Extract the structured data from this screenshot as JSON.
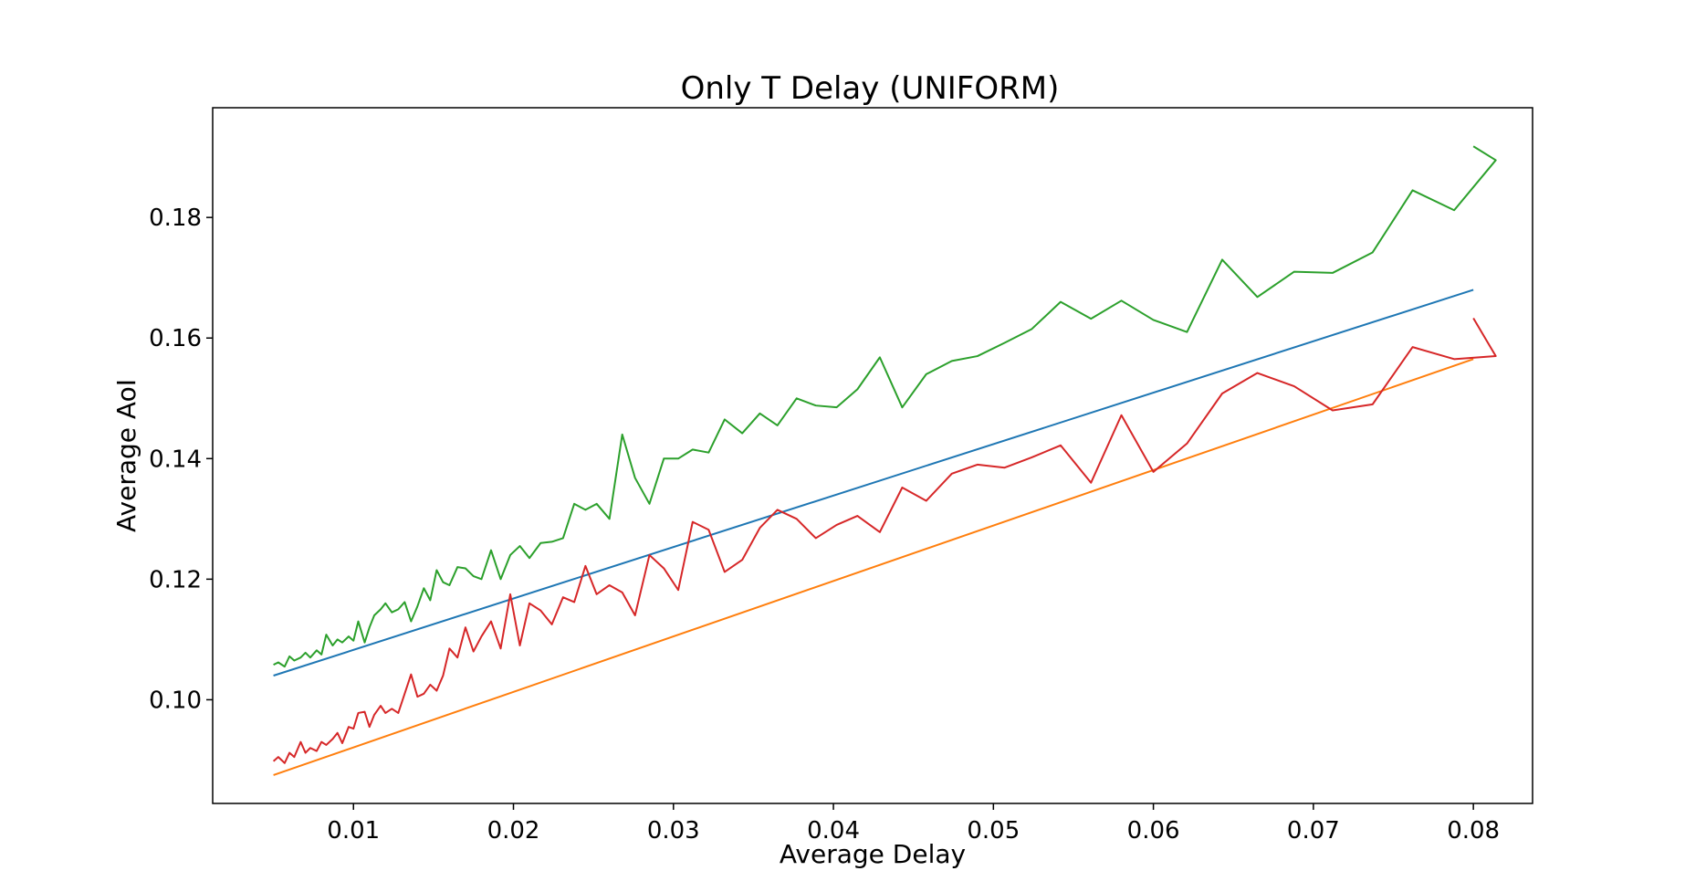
{
  "chart_data": {
    "type": "line",
    "title": "Only T Delay (UNIFORM)",
    "xlabel": "Average Delay",
    "ylabel": "Average AoI",
    "xlim": [
      0.0012,
      0.0837
    ],
    "ylim": [
      0.0828,
      0.1982
    ],
    "xticks": [
      0.01,
      0.02,
      0.03,
      0.04,
      0.05,
      0.06,
      0.07,
      0.08
    ],
    "xtick_labels": [
      "0.01",
      "0.02",
      "0.03",
      "0.04",
      "0.05",
      "0.06",
      "0.07",
      "0.08"
    ],
    "yticks": [
      0.1,
      0.12,
      0.14,
      0.16,
      0.18
    ],
    "ytick_labels": [
      "0.10",
      "0.12",
      "0.14",
      "0.16",
      "0.18"
    ],
    "grid": false,
    "legend": "none",
    "series": [
      {
        "color": "#1f77b4",
        "x": [
          0.005,
          0.08
        ],
        "y": [
          0.104,
          0.168
        ]
      },
      {
        "color": "#ff7f0e",
        "x": [
          0.005,
          0.08
        ],
        "y": [
          0.0875,
          0.1565
        ]
      },
      {
        "color": "#2ca02c",
        "x": [
          0.005,
          0.0053,
          0.0057,
          0.006,
          0.0063,
          0.0067,
          0.007,
          0.0073,
          0.0077,
          0.008,
          0.0083,
          0.0087,
          0.009,
          0.0093,
          0.0097,
          0.01,
          0.0103,
          0.0107,
          0.011,
          0.0113,
          0.0117,
          0.012,
          0.0124,
          0.0128,
          0.0132,
          0.0136,
          0.014,
          0.0144,
          0.0148,
          0.0152,
          0.0156,
          0.016,
          0.0165,
          0.017,
          0.0175,
          0.018,
          0.0186,
          0.0192,
          0.0198,
          0.0204,
          0.021,
          0.0217,
          0.0224,
          0.0231,
          0.0238,
          0.0245,
          0.0252,
          0.026,
          0.0268,
          0.0276,
          0.0285,
          0.0294,
          0.0303,
          0.0312,
          0.0322,
          0.0332,
          0.0343,
          0.0354,
          0.0365,
          0.0377,
          0.0389,
          0.0402,
          0.0415,
          0.0429,
          0.0443,
          0.0458,
          0.0474,
          0.049,
          0.0507,
          0.0524,
          0.0542,
          0.0561,
          0.058,
          0.06,
          0.0621,
          0.0643,
          0.0665,
          0.0688,
          0.0712,
          0.0737,
          0.0762,
          0.0788,
          0.0814,
          0.08
        ],
        "y": [
          0.1058,
          0.1062,
          0.1055,
          0.1072,
          0.1065,
          0.107,
          0.1078,
          0.107,
          0.1082,
          0.1075,
          0.1108,
          0.109,
          0.11,
          0.1095,
          0.1105,
          0.1098,
          0.113,
          0.1095,
          0.112,
          0.114,
          0.115,
          0.116,
          0.1145,
          0.115,
          0.1162,
          0.113,
          0.1155,
          0.1185,
          0.1165,
          0.1215,
          0.1195,
          0.119,
          0.122,
          0.1218,
          0.1205,
          0.12,
          0.1248,
          0.12,
          0.124,
          0.1255,
          0.1235,
          0.126,
          0.1262,
          0.1268,
          0.1325,
          0.1315,
          0.1325,
          0.13,
          0.144,
          0.1368,
          0.1325,
          0.14,
          0.14,
          0.1415,
          0.141,
          0.1465,
          0.1442,
          0.1475,
          0.1455,
          0.15,
          0.1488,
          0.1485,
          0.1515,
          0.1568,
          0.1485,
          0.154,
          0.1562,
          0.157,
          0.1592,
          0.1615,
          0.166,
          0.1632,
          0.1662,
          0.163,
          0.161,
          0.173,
          0.1668,
          0.171,
          0.1708,
          0.1742,
          0.1845,
          0.1812,
          0.1895,
          0.1918
        ]
      },
      {
        "color": "#d62728",
        "x": [
          0.005,
          0.0053,
          0.0057,
          0.006,
          0.0063,
          0.0067,
          0.007,
          0.0073,
          0.0077,
          0.008,
          0.0083,
          0.0087,
          0.009,
          0.0093,
          0.0097,
          0.01,
          0.0103,
          0.0107,
          0.011,
          0.0113,
          0.0117,
          0.012,
          0.0124,
          0.0128,
          0.0132,
          0.0136,
          0.014,
          0.0144,
          0.0148,
          0.0152,
          0.0156,
          0.016,
          0.0165,
          0.017,
          0.0175,
          0.018,
          0.0186,
          0.0192,
          0.0198,
          0.0204,
          0.021,
          0.0217,
          0.0224,
          0.0231,
          0.0238,
          0.0245,
          0.0252,
          0.026,
          0.0268,
          0.0276,
          0.0285,
          0.0294,
          0.0303,
          0.0312,
          0.0322,
          0.0332,
          0.0343,
          0.0354,
          0.0365,
          0.0377,
          0.0389,
          0.0402,
          0.0415,
          0.0429,
          0.0443,
          0.0458,
          0.0474,
          0.049,
          0.0507,
          0.0524,
          0.0542,
          0.0561,
          0.058,
          0.06,
          0.0621,
          0.0643,
          0.0665,
          0.0688,
          0.0712,
          0.0737,
          0.0762,
          0.0788,
          0.0814,
          0.08
        ],
        "y": [
          0.0898,
          0.0905,
          0.0895,
          0.0912,
          0.0905,
          0.093,
          0.0912,
          0.092,
          0.0915,
          0.093,
          0.0925,
          0.0935,
          0.0945,
          0.0928,
          0.0955,
          0.0952,
          0.0978,
          0.098,
          0.0955,
          0.0975,
          0.099,
          0.0978,
          0.0985,
          0.0978,
          0.101,
          0.1042,
          0.1005,
          0.101,
          0.1025,
          0.1015,
          0.104,
          0.1085,
          0.107,
          0.112,
          0.108,
          0.1105,
          0.113,
          0.1085,
          0.1175,
          0.109,
          0.116,
          0.1148,
          0.1125,
          0.117,
          0.1162,
          0.1222,
          0.1175,
          0.119,
          0.1178,
          0.114,
          0.124,
          0.1218,
          0.1182,
          0.1295,
          0.1282,
          0.1212,
          0.1232,
          0.1285,
          0.1315,
          0.13,
          0.1268,
          0.129,
          0.1305,
          0.1278,
          0.1352,
          0.133,
          0.1375,
          0.139,
          0.1385,
          0.1402,
          0.1422,
          0.136,
          0.1472,
          0.1378,
          0.1425,
          0.1508,
          0.1542,
          0.152,
          0.148,
          0.149,
          0.1585,
          0.1565,
          0.157,
          0.1633
        ]
      }
    ]
  }
}
